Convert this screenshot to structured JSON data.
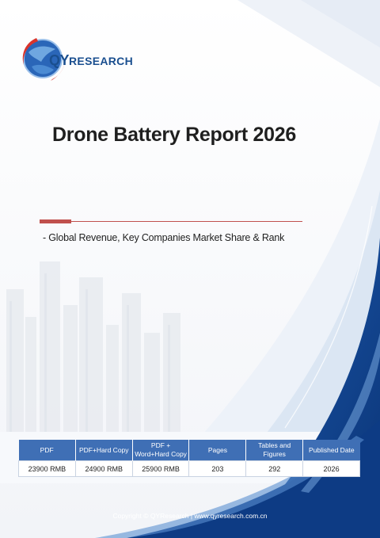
{
  "brand": {
    "name_prefix": "QY",
    "name_suffix": "RESEARCH"
  },
  "cover": {
    "title": "Drone Battery Report 2026",
    "subtitle": "- Global Revenue, Key Companies Market Share & Rank"
  },
  "price_table": {
    "headers": [
      "PDF",
      "PDF+Hard Copy",
      "PDF +\nWord+Hard Copy",
      "Pages",
      "Tables and\nFigures",
      "Published Date"
    ],
    "row": [
      "23900 RMB",
      "24900 RMB",
      "25900 RMB",
      "203",
      "292",
      "2026"
    ]
  },
  "footer": {
    "text": "Copyright © QYResearch | www.qyresearch.com.cn"
  },
  "colors": {
    "brand_blue": "#1a4f8f",
    "header_blue": "#3f6fb5",
    "accent_red": "#c0504d",
    "swoosh_dark": "#0e3e8a"
  }
}
